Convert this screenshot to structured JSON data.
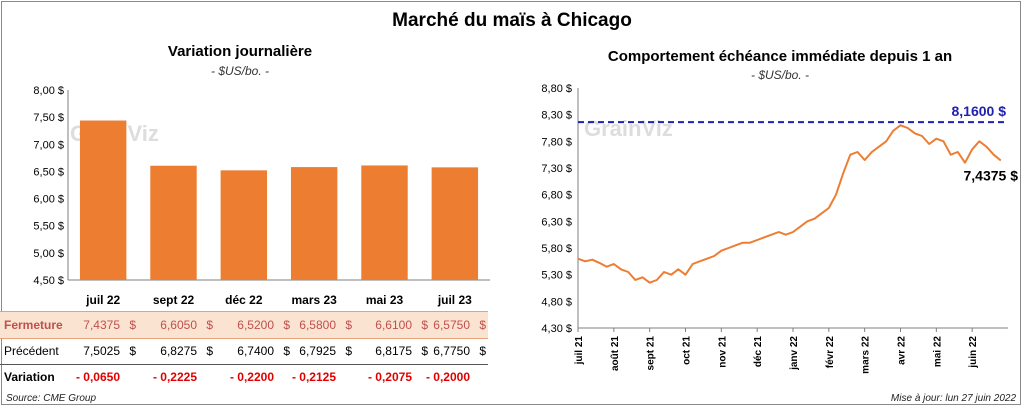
{
  "title": "Marché du maïs à Chicago",
  "watermark": "GrainViz",
  "source": "Source: CME Group",
  "update": "Mise à jour: lun 27 juin 2022",
  "colors": {
    "bar": "#ed7d31",
    "line": "#ed7d31",
    "ref": "#1f1fb0",
    "variation": "#e00000",
    "close": "#c0504d"
  },
  "table": {
    "rows": [
      {
        "label": "Fermeture",
        "values": [
          "7,4375",
          "6,6050",
          "6,5200",
          "6,5800",
          "6,6100",
          "6,5750"
        ]
      },
      {
        "label": "Précédent",
        "values": [
          "7,5025",
          "6,8275",
          "6,7400",
          "6,7925",
          "6,8175",
          "6,7750"
        ]
      },
      {
        "label": "Variation",
        "values": [
          "- 0,0650",
          "- 0,2225",
          "- 0,2200",
          "- 0,2125",
          "- 0,2075",
          "- 0,2000"
        ]
      }
    ],
    "dollar": "$"
  },
  "chart_data": [
    {
      "type": "bar",
      "title": "Variation  journalière",
      "subtitle": "- $US/bo. -",
      "categories": [
        "juil 22",
        "sept 22",
        "déc 22",
        "mars 23",
        "mai 23",
        "juil 23"
      ],
      "values": [
        7.4375,
        6.605,
        6.52,
        6.58,
        6.61,
        6.575
      ],
      "ylim": [
        4.5,
        8.0
      ],
      "yticks": [
        "4,50 $",
        "5,00 $",
        "5,50 $",
        "6,00 $",
        "6,50 $",
        "7,00 $",
        "7,50 $",
        "8,00 $"
      ],
      "ytick_values": [
        4.5,
        5.0,
        5.5,
        6.0,
        6.5,
        7.0,
        7.5,
        8.0
      ],
      "grid": false
    },
    {
      "type": "line",
      "title": "Comportement  échéance immédiate  depuis 1 an",
      "subtitle": "- $US/bo. -",
      "xlabels": [
        "juil 21",
        "août 21",
        "sept 21",
        "oct 21",
        "nov 21",
        "déc 21",
        "janv 22",
        "févr 22",
        "mars 22",
        "avr 22",
        "mai 22",
        "juin 22"
      ],
      "x_month_index": [
        0,
        0.2,
        0.4,
        0.6,
        0.8,
        1,
        1.2,
        1.4,
        1.6,
        1.8,
        2,
        2.2,
        2.4,
        2.6,
        2.8,
        3,
        3.2,
        3.4,
        3.6,
        3.8,
        4,
        4.2,
        4.4,
        4.6,
        4.8,
        5,
        5.2,
        5.4,
        5.6,
        5.8,
        6,
        6.2,
        6.4,
        6.6,
        6.8,
        7,
        7.2,
        7.4,
        7.6,
        7.8,
        8,
        8.2,
        8.4,
        8.6,
        8.8,
        9,
        9.2,
        9.4,
        9.6,
        9.8,
        10,
        10.2,
        10.4,
        10.6,
        10.8,
        11,
        11.2,
        11.4,
        11.6,
        11.8
      ],
      "values": [
        5.6,
        5.55,
        5.58,
        5.52,
        5.45,
        5.5,
        5.4,
        5.35,
        5.2,
        5.25,
        5.15,
        5.2,
        5.35,
        5.3,
        5.4,
        5.3,
        5.5,
        5.55,
        5.6,
        5.65,
        5.75,
        5.8,
        5.85,
        5.9,
        5.9,
        5.95,
        6.0,
        6.05,
        6.1,
        6.05,
        6.1,
        6.2,
        6.3,
        6.35,
        6.45,
        6.55,
        6.8,
        7.2,
        7.55,
        7.6,
        7.45,
        7.6,
        7.7,
        7.8,
        8.0,
        8.1,
        8.05,
        7.95,
        7.9,
        7.75,
        7.85,
        7.8,
        7.55,
        7.6,
        7.4,
        7.65,
        7.8,
        7.7,
        7.55,
        7.44
      ],
      "ylim": [
        4.3,
        8.8
      ],
      "yticks": [
        "4,30 $",
        "4,80 $",
        "5,30 $",
        "5,80 $",
        "6,30 $",
        "6,80 $",
        "7,30 $",
        "7,80 $",
        "8,30 $",
        "8,80 $"
      ],
      "ytick_values": [
        4.3,
        4.8,
        5.3,
        5.8,
        6.3,
        6.8,
        7.3,
        7.8,
        8.3,
        8.8
      ],
      "reference_line": {
        "value": 8.16,
        "label": "8,1600 $"
      },
      "last_label": "7,4375 $",
      "grid": false
    }
  ]
}
